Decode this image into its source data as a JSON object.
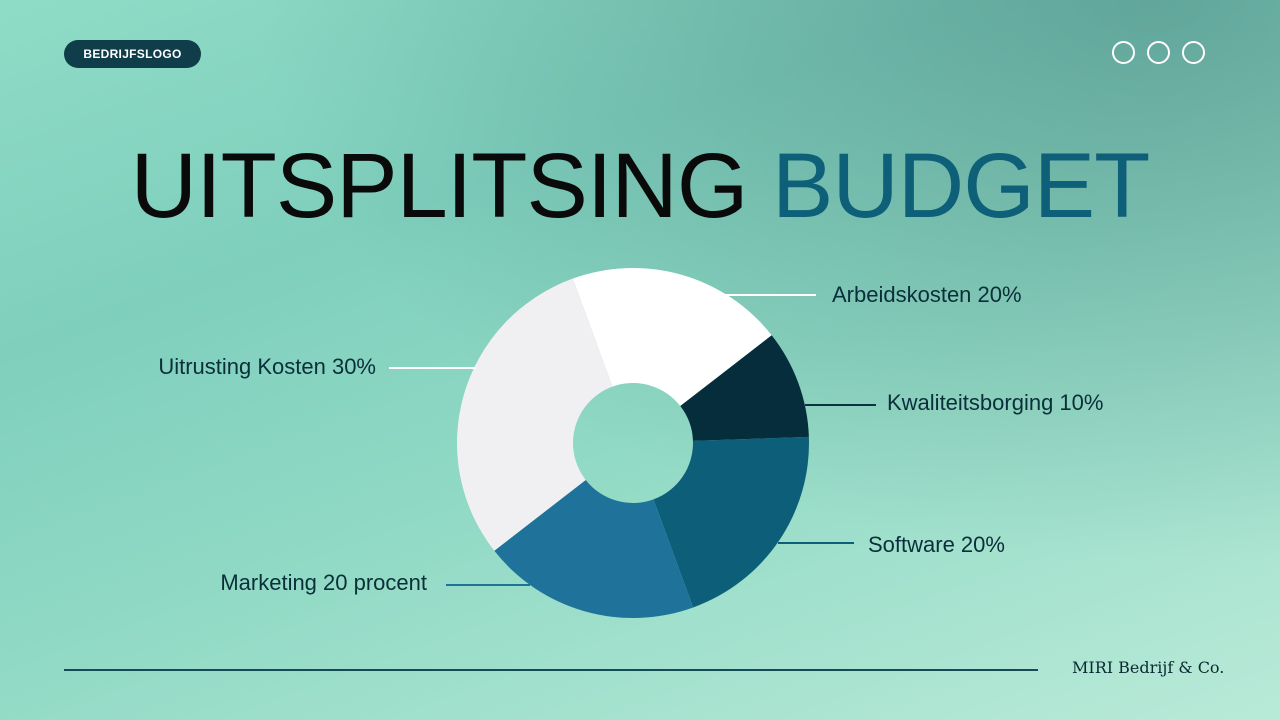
{
  "logo": {
    "label": "BEDRIJFSLOGO"
  },
  "title": {
    "part1": "UITSPLITSING",
    "part2": "BUDGET"
  },
  "chart_data": {
    "type": "pie",
    "title": "UITSPLITSING BUDGET",
    "slices": [
      {
        "label": "Arbeidskosten 20%",
        "value": 20,
        "color": "#ffffff"
      },
      {
        "label": "Kwaliteitsborging 10%",
        "value": 10,
        "color": "#062d3b"
      },
      {
        "label": "Software 20%",
        "value": 20,
        "color": "#0d5e78"
      },
      {
        "label": "Marketing 20 procent",
        "value": 20,
        "color": "#1f739b"
      },
      {
        "label": "Uitrusting Kosten 30%",
        "value": 30,
        "color": "#f0f0f2"
      }
    ],
    "donut": true
  },
  "footer": {
    "company": "MIRI Bedrijf & Co."
  },
  "colors": {
    "accent": "#0e5f78",
    "dark": "#0f3d4a"
  }
}
